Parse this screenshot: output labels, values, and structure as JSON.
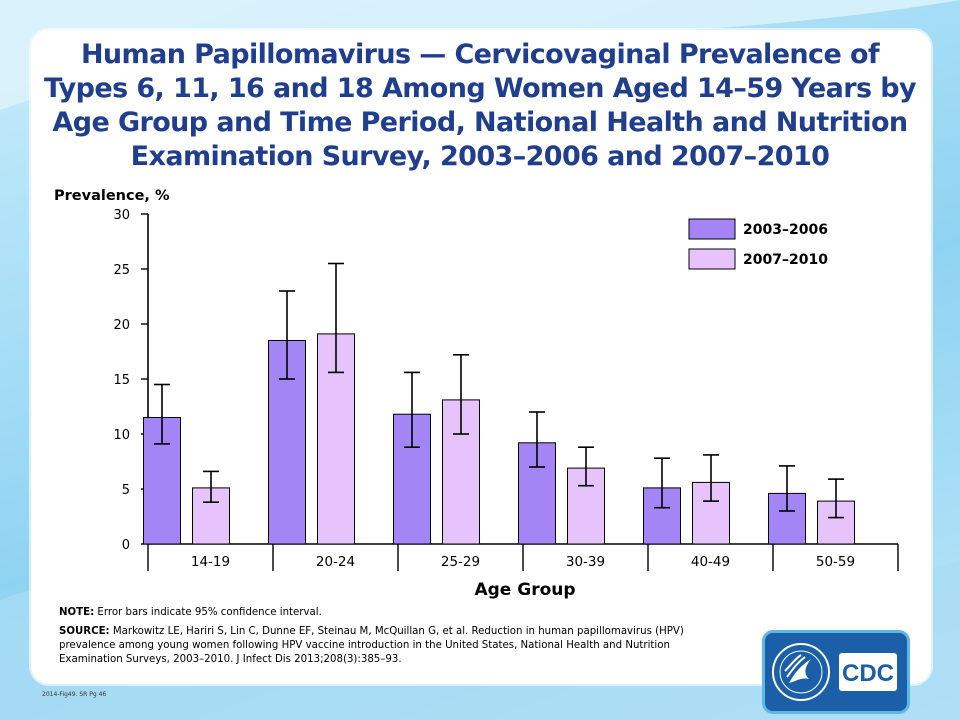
{
  "title": "Human Papillomavirus — Cervicovaginal Prevalence of Types 6, 11, 16 and 18 Among Women Aged 14–59 Years by Age Group and Time Period, National Health and Nutrition Examination Survey, 2003–2006 and 2007–2010",
  "colors": {
    "series_2003_2006": "#a485f5",
    "series_2007_2010": "#e7c3fb",
    "title": "#1f3e8e"
  },
  "chart_data": {
    "type": "bar",
    "title": "Human Papillomavirus — Cervicovaginal Prevalence of Types 6, 11, 16 and 18 Among Women Aged 14–59 Years by Age Group and Time Period, National Health and Nutrition Examination Survey, 2003–2006 and 2007–2010",
    "xlabel": "Age Group",
    "ylabel": "Prevalence, %",
    "ylim": [
      0,
      30
    ],
    "yticks": [
      0,
      5,
      10,
      15,
      20,
      25,
      30
    ],
    "grid": false,
    "legend_position": "top-right",
    "categories": [
      "14-19",
      "20-24",
      "25-29",
      "30-39",
      "40-49",
      "50-59"
    ],
    "series": [
      {
        "name": "2003–2006",
        "values": [
          11.5,
          18.5,
          11.8,
          9.2,
          5.1,
          4.6
        ],
        "ci_low": [
          9.1,
          15.0,
          8.8,
          7.0,
          3.3,
          3.0
        ],
        "ci_high": [
          14.5,
          23.0,
          15.6,
          12.0,
          7.8,
          7.1
        ]
      },
      {
        "name": "2007–2010",
        "values": [
          5.1,
          19.1,
          13.1,
          6.9,
          5.6,
          3.9
        ],
        "ci_low": [
          3.8,
          15.6,
          10.0,
          5.3,
          3.9,
          2.4
        ],
        "ci_high": [
          6.6,
          25.5,
          17.2,
          8.8,
          8.1,
          5.9
        ]
      }
    ]
  },
  "notes": {
    "note_label": "NOTE:",
    "note_text": " Error bars indicate 95% confidence interval.",
    "source_label": "SOURCE:",
    "source_text": " Markowitz LE, Hariri S, Lin C, Dunne EF, Steinau M, McQuillan G, et al. Reduction in human papillomavirus (HPV) prevalence among young women following HPV vaccine introduction in the United States, National Health and Nutrition Examination Surveys, 2003–2010.  J Infect Dis 2013;208(3):385–93."
  },
  "footer_code": "2014-Fig49. SR Pg 46",
  "logo_text": "CDC"
}
